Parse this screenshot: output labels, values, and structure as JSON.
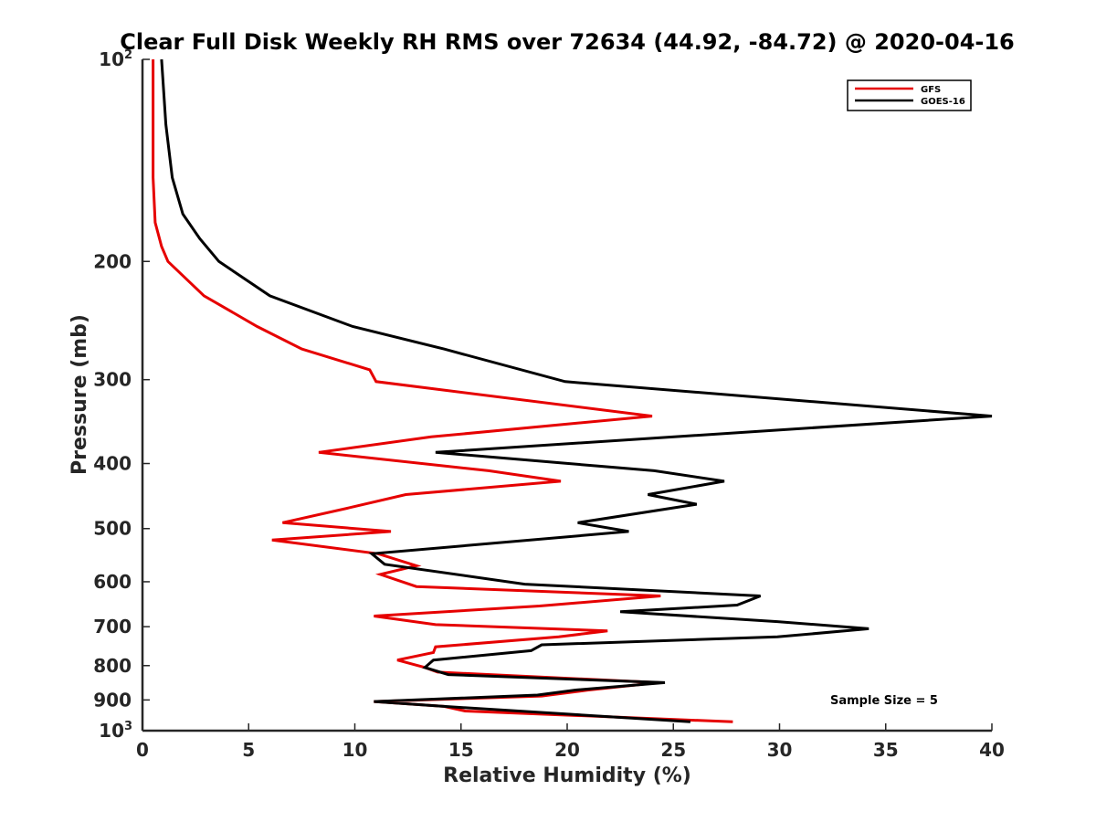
{
  "chart_data": {
    "type": "line",
    "title": "Clear Full Disk Weekly RH RMS over 72634 (44.92, -84.72) @ 2020-04-16",
    "xlabel": "Relative Humidity (%)",
    "ylabel": "Pressure (mb)",
    "xlim": [
      0,
      40
    ],
    "ylim": [
      100,
      1000
    ],
    "yscale": "log",
    "y_reversed": true,
    "xticks": [
      0,
      5,
      10,
      15,
      20,
      25,
      30,
      35,
      40
    ],
    "yticks": [
      {
        "value": 100,
        "label": "10",
        "sup": "2"
      },
      {
        "value": 200,
        "label": "200",
        "sup": ""
      },
      {
        "value": 300,
        "label": "300",
        "sup": ""
      },
      {
        "value": 400,
        "label": "400",
        "sup": ""
      },
      {
        "value": 500,
        "label": "500",
        "sup": ""
      },
      {
        "value": 600,
        "label": "600",
        "sup": ""
      },
      {
        "value": 700,
        "label": "700",
        "sup": ""
      },
      {
        "value": 800,
        "label": "800",
        "sup": ""
      },
      {
        "value": 900,
        "label": "900",
        "sup": ""
      },
      {
        "value": 1000,
        "label": "10",
        "sup": "3"
      }
    ],
    "legend_position": "top-right",
    "annotation": "Sample Size = 5",
    "series": [
      {
        "name": "GFS",
        "color": "#e60000",
        "points": [
          [
            0.5,
            100
          ],
          [
            0.5,
            125
          ],
          [
            0.5,
            150
          ],
          [
            0.6,
            175
          ],
          [
            0.9,
            190
          ],
          [
            1.2,
            200
          ],
          [
            2.9,
            225
          ],
          [
            5.4,
            250
          ],
          [
            7.5,
            270
          ],
          [
            10.7,
            290
          ],
          [
            11.0,
            302
          ],
          [
            24.0,
            340
          ],
          [
            13.6,
            365
          ],
          [
            8.3,
            385
          ],
          [
            16.3,
            410
          ],
          [
            19.7,
            425
          ],
          [
            12.4,
            445
          ],
          [
            9.8,
            465
          ],
          [
            6.6,
            490
          ],
          [
            11.7,
            505
          ],
          [
            6.1,
            520
          ],
          [
            11.1,
            545
          ],
          [
            12.9,
            568
          ],
          [
            11.2,
            585
          ],
          [
            12.9,
            610
          ],
          [
            24.4,
            630
          ],
          [
            18.7,
            652
          ],
          [
            10.9,
            675
          ],
          [
            13.8,
            695
          ],
          [
            21.9,
            710
          ],
          [
            19.6,
            725
          ],
          [
            13.8,
            750
          ],
          [
            13.7,
            765
          ],
          [
            12.0,
            785
          ],
          [
            13.3,
            805
          ],
          [
            13.9,
            818
          ],
          [
            24.3,
            848
          ],
          [
            21.0,
            870
          ],
          [
            18.8,
            888
          ],
          [
            10.9,
            905
          ],
          [
            14.2,
            920
          ],
          [
            15.2,
            935
          ],
          [
            27.8,
            970
          ]
        ]
      },
      {
        "name": "GOES-16",
        "color": "#000000",
        "points": [
          [
            0.9,
            100
          ],
          [
            1.1,
            125
          ],
          [
            1.4,
            150
          ],
          [
            1.9,
            170
          ],
          [
            2.7,
            185
          ],
          [
            3.6,
            200
          ],
          [
            6.0,
            225
          ],
          [
            9.9,
            250
          ],
          [
            14.2,
            270
          ],
          [
            19.9,
            302
          ],
          [
            40.0,
            340
          ],
          [
            13.8,
            385
          ],
          [
            24.1,
            410
          ],
          [
            27.4,
            425
          ],
          [
            23.8,
            445
          ],
          [
            26.1,
            460
          ],
          [
            20.5,
            490
          ],
          [
            22.9,
            505
          ],
          [
            10.8,
            545
          ],
          [
            11.4,
            565
          ],
          [
            18.0,
            605
          ],
          [
            29.1,
            630
          ],
          [
            28.0,
            650
          ],
          [
            22.5,
            665
          ],
          [
            29.9,
            688
          ],
          [
            34.2,
            705
          ],
          [
            29.9,
            725
          ],
          [
            18.8,
            745
          ],
          [
            18.3,
            760
          ],
          [
            13.7,
            785
          ],
          [
            13.3,
            805
          ],
          [
            14.4,
            825
          ],
          [
            24.6,
            848
          ],
          [
            20.4,
            870
          ],
          [
            18.6,
            885
          ],
          [
            10.9,
            905
          ],
          [
            14.2,
            920
          ],
          [
            25.8,
            970
          ]
        ]
      }
    ]
  }
}
